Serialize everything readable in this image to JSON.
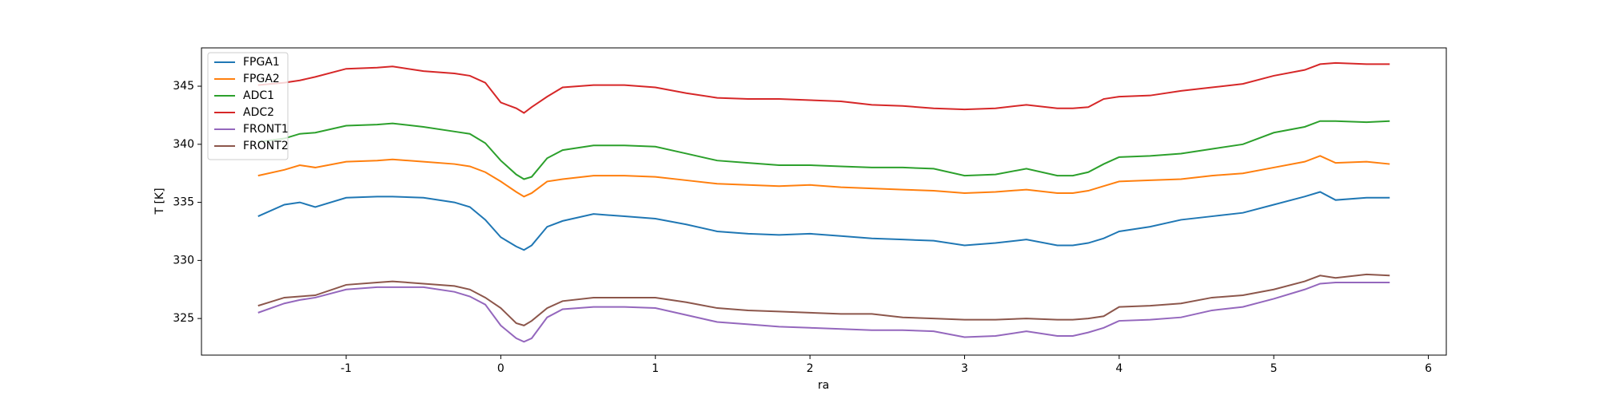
{
  "chart_data": {
    "type": "line",
    "xlabel": "ra",
    "ylabel": "T [K]",
    "xlim": [
      -1.936,
      6.116
    ],
    "ylim": [
      321.85,
      348.3
    ],
    "xticks": [
      -1,
      0,
      1,
      2,
      3,
      4,
      5,
      6
    ],
    "yticks": [
      325,
      330,
      335,
      340,
      345
    ],
    "grid": false,
    "legend": "upper left",
    "x": [
      -1.57,
      -1.4,
      -1.3,
      -1.2,
      -1.0,
      -0.8,
      -0.7,
      -0.5,
      -0.3,
      -0.2,
      -0.1,
      0,
      0.1,
      0.15,
      0.2,
      0.3,
      0.4,
      0.6,
      0.8,
      1.0,
      1.2,
      1.4,
      1.6,
      1.8,
      2.0,
      2.2,
      2.4,
      2.6,
      2.8,
      3.0,
      3.2,
      3.4,
      3.6,
      3.7,
      3.8,
      3.9,
      4.0,
      4.2,
      4.4,
      4.6,
      4.8,
      5.0,
      5.2,
      5.3,
      5.4,
      5.6,
      5.75
    ],
    "series": [
      {
        "name": "FPGA1",
        "color": "#1f77b4",
        "values": [
          333.8,
          334.8,
          335.0,
          334.6,
          335.4,
          335.5,
          335.5,
          335.4,
          335.0,
          334.6,
          333.5,
          332.0,
          331.2,
          330.9,
          331.3,
          332.9,
          333.4,
          334.0,
          333.8,
          333.6,
          333.1,
          332.5,
          332.3,
          332.2,
          332.3,
          332.1,
          331.9,
          331.8,
          331.7,
          331.3,
          331.5,
          331.8,
          331.3,
          331.3,
          331.5,
          331.9,
          332.5,
          332.9,
          333.5,
          333.8,
          334.1,
          334.8,
          335.5,
          335.9,
          335.2,
          335.4,
          335.4
        ]
      },
      {
        "name": "FPGA2",
        "color": "#ff7f0e",
        "values": [
          337.3,
          337.8,
          338.2,
          338.0,
          338.5,
          338.6,
          338.7,
          338.5,
          338.3,
          338.1,
          337.6,
          336.8,
          335.9,
          335.5,
          335.8,
          336.8,
          337.0,
          337.3,
          337.3,
          337.2,
          336.9,
          336.6,
          336.5,
          336.4,
          336.5,
          336.3,
          336.2,
          336.1,
          336.0,
          335.8,
          335.9,
          336.1,
          335.8,
          335.8,
          336.0,
          336.4,
          336.8,
          336.9,
          337.0,
          337.3,
          337.5,
          338.0,
          338.5,
          339.0,
          338.4,
          338.5,
          338.3
        ]
      },
      {
        "name": "ADC1",
        "color": "#2ca02c",
        "values": [
          340.2,
          340.5,
          340.9,
          341.0,
          341.6,
          341.7,
          341.8,
          341.5,
          341.1,
          340.9,
          340.1,
          338.6,
          337.4,
          337.0,
          337.2,
          338.8,
          339.5,
          339.9,
          339.9,
          339.8,
          339.2,
          338.6,
          338.4,
          338.2,
          338.2,
          338.1,
          338.0,
          338.0,
          337.9,
          337.3,
          337.4,
          337.9,
          337.3,
          337.3,
          337.6,
          338.3,
          338.9,
          339.0,
          339.2,
          339.6,
          340.0,
          341.0,
          341.5,
          342.0,
          342.0,
          341.9,
          342.0
        ]
      },
      {
        "name": "ADC2",
        "color": "#d62728",
        "values": [
          345.1,
          345.3,
          345.5,
          345.8,
          346.5,
          346.6,
          346.7,
          346.3,
          346.1,
          345.9,
          345.3,
          343.6,
          343.1,
          342.7,
          343.2,
          344.1,
          344.9,
          345.1,
          345.1,
          344.9,
          344.4,
          344.0,
          343.9,
          343.9,
          343.8,
          343.7,
          343.4,
          343.3,
          343.1,
          343.0,
          343.1,
          343.4,
          343.1,
          343.1,
          343.2,
          343.9,
          344.1,
          344.2,
          344.6,
          344.9,
          345.2,
          345.9,
          346.4,
          346.9,
          347.0,
          346.9,
          346.9
        ]
      },
      {
        "name": "FRONT1",
        "color": "#9467bd",
        "values": [
          325.5,
          326.3,
          326.6,
          326.8,
          327.5,
          327.7,
          327.7,
          327.7,
          327.3,
          326.9,
          326.2,
          324.4,
          323.3,
          323.0,
          323.3,
          325.1,
          325.8,
          326.0,
          326.0,
          325.9,
          325.3,
          324.7,
          324.5,
          324.3,
          324.2,
          324.1,
          324.0,
          324.0,
          323.9,
          323.4,
          323.5,
          323.9,
          323.5,
          323.5,
          323.8,
          324.2,
          324.8,
          324.9,
          325.1,
          325.7,
          326.0,
          326.7,
          327.5,
          328.0,
          328.1,
          328.1,
          328.1
        ]
      },
      {
        "name": "FRONT2",
        "color": "#8c564b",
        "values": [
          326.1,
          326.8,
          326.9,
          327.0,
          327.9,
          328.1,
          328.2,
          328.0,
          327.8,
          327.5,
          326.8,
          325.9,
          324.6,
          324.4,
          324.8,
          325.9,
          326.5,
          326.8,
          326.8,
          326.8,
          326.4,
          325.9,
          325.7,
          325.6,
          325.5,
          325.4,
          325.4,
          325.1,
          325.0,
          324.9,
          324.9,
          325.0,
          324.9,
          324.9,
          325.0,
          325.2,
          326.0,
          326.1,
          326.3,
          326.8,
          327.0,
          327.5,
          328.2,
          328.7,
          328.5,
          328.8,
          328.7
        ]
      }
    ]
  }
}
